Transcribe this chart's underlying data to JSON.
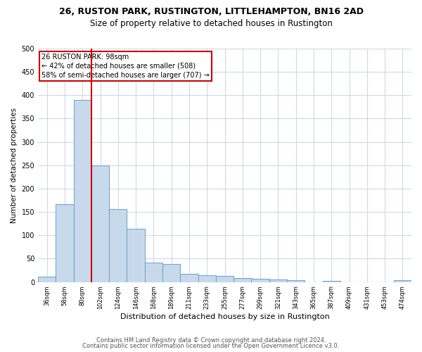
{
  "title1": "26, RUSTON PARK, RUSTINGTON, LITTLEHAMPTON, BN16 2AD",
  "title2": "Size of property relative to detached houses in Rustington",
  "xlabel": "Distribution of detached houses by size in Rustington",
  "ylabel": "Number of detached properties",
  "categories": [
    "36sqm",
    "58sqm",
    "80sqm",
    "102sqm",
    "124sqm",
    "146sqm",
    "168sqm",
    "189sqm",
    "211sqm",
    "233sqm",
    "255sqm",
    "277sqm",
    "299sqm",
    "321sqm",
    "343sqm",
    "365sqm",
    "387sqm",
    "409sqm",
    "431sqm",
    "453sqm",
    "474sqm"
  ],
  "values": [
    11,
    167,
    390,
    249,
    156,
    114,
    42,
    39,
    18,
    15,
    13,
    8,
    7,
    5,
    4,
    0,
    3,
    0,
    0,
    0,
    4
  ],
  "bar_color": "#c9d9ec",
  "bar_edge_color": "#6fa8d0",
  "line_x_index": 2,
  "line_color": "#cc0000",
  "annotation_line1": "26 RUSTON PARK: 98sqm",
  "annotation_line2": "← 42% of detached houses are smaller (508)",
  "annotation_line3": "58% of semi-detached houses are larger (707) →",
  "annotation_box_color": "#ffffff",
  "annotation_box_edge_color": "#cc0000",
  "ylim": [
    0,
    500
  ],
  "yticks": [
    0,
    50,
    100,
    150,
    200,
    250,
    300,
    350,
    400,
    450,
    500
  ],
  "footer1": "Contains HM Land Registry data © Crown copyright and database right 2024.",
  "footer2": "Contains public sector information licensed under the Open Government Licence v3.0.",
  "bg_color": "#ffffff",
  "grid_color": "#d0d8e8",
  "title1_fontsize": 9,
  "title2_fontsize": 8.5,
  "xlabel_fontsize": 8,
  "ylabel_fontsize": 7.5,
  "xtick_fontsize": 6,
  "ytick_fontsize": 7,
  "annotation_fontsize": 7,
  "footer_fontsize": 6
}
